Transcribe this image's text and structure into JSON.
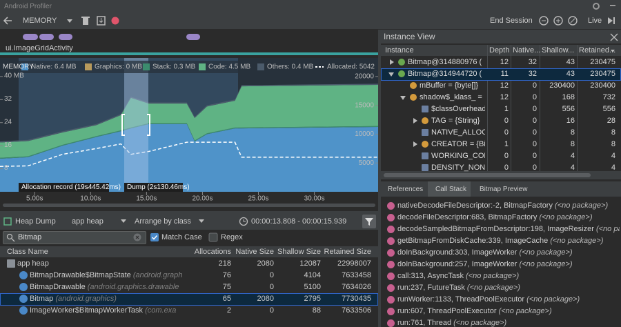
{
  "window": {
    "title": "Android Profiler"
  },
  "toolbar": {
    "profiler": "MEMORY",
    "end_session": "End Session",
    "live": "Live"
  },
  "timeline": {
    "activity": "ui.ImageGridActivity"
  },
  "chart_data": {
    "type": "area",
    "title": "MEMORY",
    "x": [
      1.9,
      4.4,
      7.5,
      10.5,
      12.7,
      13.6,
      15.2,
      18.6,
      19.3,
      20.4,
      22.9,
      23.5,
      35.7
    ],
    "series": [
      {
        "name": "Native: 6.4 MB",
        "color": "#4f93c9",
        "values": [
          11.5,
          12,
          16,
          19,
          21,
          22,
          23.5,
          23.5,
          17.5,
          20,
          22,
          22,
          22.5
        ]
      },
      {
        "name": "Graphics: 0 MB",
        "color": "#b89a5c",
        "values": [
          0,
          0,
          0,
          0,
          0,
          0,
          0,
          0,
          0,
          0,
          0,
          0,
          0
        ]
      },
      {
        "name": "Stack: 0.3 MB",
        "color": "#3c8c6e",
        "values": [
          0.3,
          0.3,
          0.3,
          0.3,
          0.3,
          0.3,
          0.3,
          0.3,
          0.3,
          0.3,
          0.3,
          0.3,
          0.3
        ]
      },
      {
        "name": "Code: 4.5 MB",
        "color": "#5fb384",
        "values": [
          5.3,
          5.3,
          4.3,
          3.8,
          5.3,
          10.3,
          6.8,
          6.8,
          7.8,
          9.3,
          9.3,
          14.3,
          14.3
        ]
      },
      {
        "name": "Others: 0.4 MB",
        "color": "#4b5b6b",
        "values": [
          0.4,
          0.4,
          0.4,
          0.4,
          0.4,
          0.4,
          0.4,
          0.4,
          0.4,
          0.4,
          0.4,
          0.4,
          0.4
        ]
      },
      {
        "name": "Allocated: 5042",
        "color": "#ffffff",
        "axis": "y2",
        "values": [
          4400,
          4500,
          6500,
          7500,
          8300,
          6500,
          7000,
          8600,
          8600,
          8600,
          8600,
          6000,
          6000
        ]
      }
    ],
    "xlim": [
      1.9,
      35.7
    ],
    "xticks": [
      {
        "value": 5,
        "label": "5.00s"
      },
      {
        "value": 10,
        "label": "10.00s"
      },
      {
        "value": 15,
        "label": "15.00s"
      },
      {
        "value": 20,
        "label": "20.00s"
      },
      {
        "value": 25,
        "label": "25.00s"
      },
      {
        "value": 30,
        "label": "30.00s"
      }
    ],
    "ylim": [
      0,
      45
    ],
    "yticks": [
      {
        "value": 40,
        "label": "40 MB"
      },
      32,
      24,
      16,
      8
    ],
    "y2lim": [
      0,
      22500
    ],
    "y2ticks": [
      20000,
      15000,
      10000,
      5000
    ],
    "annotations": [
      "Allocation record (19s445.42ms)",
      "Dump (2s130.46ms)"
    ]
  },
  "heap_toolbar": {
    "heap_dump": "Heap Dump",
    "heap": "app heap",
    "arrange": "Arrange by class",
    "range": "00:00:13.808 - 00:00:15.939"
  },
  "filter": {
    "query": "Bitmap",
    "match_case": "Match Case",
    "regex": "Regex"
  },
  "class_table": {
    "columns": [
      "Class Name",
      "Allocations",
      "Native Size",
      "Shallow Size",
      "Retained Size"
    ],
    "rows": [
      {
        "name": "app heap",
        "values": [
          218,
          2080,
          12087,
          22998007
        ]
      },
      {
        "name": "BitmapDrawable$BitmapState",
        "package": "(android.graph",
        "values": [
          76,
          0,
          4104,
          7633458
        ]
      },
      {
        "name": "BitmapDrawable",
        "package": "(android.graphics.drawable",
        "values": [
          75,
          0,
          5100,
          7634026
        ]
      },
      {
        "name": "Bitmap",
        "package": "(android.graphics)",
        "values": [
          65,
          2080,
          2795,
          7730435
        ]
      },
      {
        "name": "ImageWorker$BitmapWorkerTask",
        "package": "(com.exa",
        "values": [
          2,
          0,
          88,
          7633506
        ]
      }
    ]
  },
  "instance_view": {
    "title": "Instance View",
    "columns": [
      "Instance",
      "Depth",
      "Native...",
      "Shallow...",
      "Retained..."
    ],
    "rows": [
      {
        "label": "Bitmap@314880976 (",
        "values": [
          12,
          32,
          43,
          230475
        ]
      },
      {
        "label": "Bitmap@314944720 (",
        "values": [
          11,
          32,
          43,
          230475
        ]
      },
      {
        "label": "mBuffer = {byte[]}",
        "values": [
          12,
          0,
          230400,
          230400
        ]
      },
      {
        "label": "shadow$_klass_ =",
        "values": [
          12,
          0,
          168,
          732
        ]
      },
      {
        "label": "$classOverhead",
        "values": [
          1,
          0,
          556,
          556
        ]
      },
      {
        "label": "TAG = {String}",
        "values": [
          0,
          0,
          16,
          28
        ]
      },
      {
        "label": "NATIVE_ALLOC",
        "values": [
          0,
          0,
          8,
          8
        ]
      },
      {
        "label": "CREATOR = {Bi",
        "values": [
          1,
          0,
          8,
          8
        ]
      },
      {
        "label": "WORKING_CON",
        "values": [
          0,
          0,
          4,
          4
        ]
      },
      {
        "label": "DENSITY_NONE",
        "values": [
          0,
          0,
          4,
          4
        ]
      }
    ]
  },
  "tabs": [
    "References",
    "Call Stack",
    "Bitmap Preview"
  ],
  "call_stack": [
    {
      "frame": "nativeDecodeFileDescriptor:-2, BitmapFactory",
      "package": "(<no package>)"
    },
    {
      "frame": "decodeFileDescriptor:683, BitmapFactory",
      "package": "(<no package>)"
    },
    {
      "frame": "decodeSampledBitmapFromDescriptor:198, ImageResizer",
      "package": "(<no package>)"
    },
    {
      "frame": "getBitmapFromDiskCache:339, ImageCache",
      "package": "(<no package>)"
    },
    {
      "frame": "doInBackground:303, ImageWorker",
      "package": "(<no package>)"
    },
    {
      "frame": "doInBackground:257, ImageWorker",
      "package": "(<no package>)"
    },
    {
      "frame": "call:313, AsyncTask",
      "package": "(<no package>)"
    },
    {
      "frame": "run:237, FutureTask",
      "package": "(<no package>)"
    },
    {
      "frame": "runWorker:1133, ThreadPoolExecutor",
      "package": "(<no package>)"
    },
    {
      "frame": "run:607, ThreadPoolExecutor",
      "package": "(<no package>)"
    },
    {
      "frame": "run:761, Thread",
      "package": "(<no package>)"
    }
  ]
}
